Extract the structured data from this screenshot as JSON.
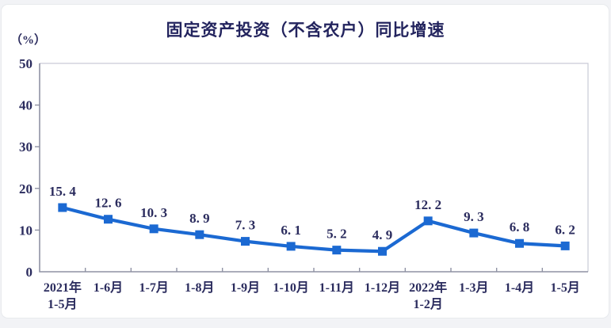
{
  "page": {
    "background": "#f2f3f6",
    "card_background": "#ffffff"
  },
  "chart_data": {
    "type": "line",
    "title": "固定资产投资（不含农户）同比增速",
    "unit_label": "（%）",
    "categories": [
      "2021年\n1-5月",
      "1-6月",
      "1-7月",
      "1-8月",
      "1-9月",
      "1-10月",
      "1-11月",
      "1-12月",
      "2022年\n1-2月",
      "1-3月",
      "1-4月",
      "1-5月"
    ],
    "values": [
      15.4,
      12.6,
      10.3,
      8.9,
      7.3,
      6.1,
      5.2,
      4.9,
      12.2,
      9.3,
      6.8,
      6.2
    ],
    "point_labels": [
      "15. 4",
      "12. 6",
      "10. 3",
      "8. 9",
      "7. 3",
      "6. 1",
      "5. 2",
      "4. 9",
      "12. 2",
      "9. 3",
      "6. 8",
      "6. 2"
    ],
    "ylim": [
      0,
      50
    ],
    "yticks": [
      0,
      10,
      20,
      30,
      40,
      50
    ],
    "grid": false,
    "legend": "none",
    "marker": "square",
    "line_color": "#1b69d2",
    "label_color": "#2b2c5e",
    "title_color": "#23245e",
    "axis_color": "#8f92a4",
    "border_color": "#c9cbd6"
  }
}
